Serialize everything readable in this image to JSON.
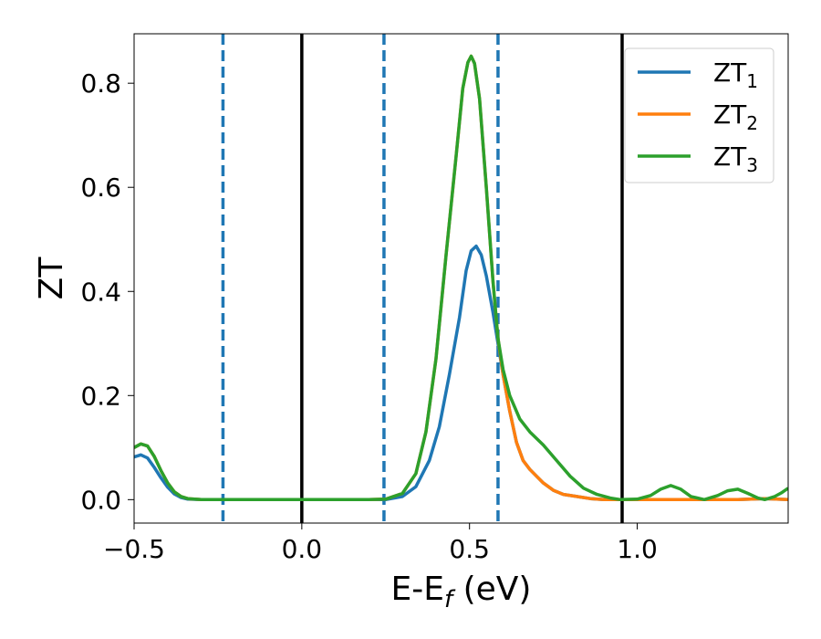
{
  "chart_data": {
    "type": "line",
    "xlabel": "E-E",
    "xlabel_sub": "f",
    "xlabel_unit": " (eV)",
    "ylabel": "ZT",
    "xlim": [
      -0.5,
      1.45
    ],
    "ylim": [
      -0.045,
      0.895
    ],
    "xticks": [
      -0.5,
      0.0,
      0.5,
      1.0
    ],
    "xtick_labels": [
      "−0.5",
      "0.0",
      "0.5",
      "1.0"
    ],
    "yticks": [
      0.0,
      0.2,
      0.4,
      0.6,
      0.8
    ],
    "ytick_labels": [
      "0.0",
      "0.2",
      "0.4",
      "0.6",
      "0.8"
    ],
    "legend_position": "top-right",
    "vlines": [
      {
        "x": -0.235,
        "style": "dashed",
        "color": "#1f77b4"
      },
      {
        "x": 0.0,
        "style": "solid",
        "color": "#000000"
      },
      {
        "x": 0.245,
        "style": "dashed",
        "color": "#1f77b4"
      },
      {
        "x": 0.585,
        "style": "dashed",
        "color": "#1f77b4"
      },
      {
        "x": 0.955,
        "style": "solid",
        "color": "#000000"
      }
    ],
    "series": [
      {
        "name": "ZT",
        "sub": "1",
        "color": "#1f77b4",
        "points": [
          [
            -0.5,
            0.082
          ],
          [
            -0.48,
            0.086
          ],
          [
            -0.46,
            0.08
          ],
          [
            -0.44,
            0.062
          ],
          [
            -0.42,
            0.042
          ],
          [
            -0.4,
            0.024
          ],
          [
            -0.38,
            0.011
          ],
          [
            -0.36,
            0.004
          ],
          [
            -0.34,
            0.001
          ],
          [
            -0.3,
            0.0
          ],
          [
            -0.2,
            0.0
          ],
          [
            -0.1,
            0.0
          ],
          [
            0.0,
            0.0
          ],
          [
            0.1,
            0.0
          ],
          [
            0.2,
            0.0
          ],
          [
            0.25,
            0.0
          ],
          [
            0.3,
            0.006
          ],
          [
            0.34,
            0.025
          ],
          [
            0.38,
            0.075
          ],
          [
            0.41,
            0.14
          ],
          [
            0.44,
            0.24
          ],
          [
            0.47,
            0.35
          ],
          [
            0.49,
            0.44
          ],
          [
            0.505,
            0.478
          ],
          [
            0.52,
            0.487
          ],
          [
            0.535,
            0.47
          ],
          [
            0.55,
            0.43
          ],
          [
            0.57,
            0.36
          ],
          [
            0.585,
            0.3
          ],
          [
            0.6,
            0.24
          ],
          [
            0.62,
            0.17
          ],
          [
            0.64,
            0.11
          ],
          [
            0.66,
            0.075
          ],
          [
            0.68,
            0.058
          ],
          [
            0.7,
            0.045
          ],
          [
            0.72,
            0.032
          ],
          [
            0.75,
            0.018
          ],
          [
            0.78,
            0.01
          ],
          [
            0.82,
            0.006
          ],
          [
            0.86,
            0.002
          ],
          [
            0.9,
            0.0
          ],
          [
            1.0,
            0.0
          ],
          [
            1.1,
            0.0
          ],
          [
            1.2,
            0.0
          ],
          [
            1.3,
            0.0
          ],
          [
            1.38,
            0.002
          ],
          [
            1.45,
            0.0
          ]
        ]
      },
      {
        "name": "ZT",
        "sub": "2",
        "color": "#ff7f0e",
        "points": [
          [
            -0.5,
            0.1
          ],
          [
            -0.48,
            0.107
          ],
          [
            -0.46,
            0.103
          ],
          [
            -0.44,
            0.083
          ],
          [
            -0.42,
            0.056
          ],
          [
            -0.4,
            0.032
          ],
          [
            -0.38,
            0.015
          ],
          [
            -0.36,
            0.006
          ],
          [
            -0.34,
            0.002
          ],
          [
            -0.3,
            0.0
          ],
          [
            -0.2,
            0.0
          ],
          [
            -0.1,
            0.0
          ],
          [
            0.0,
            0.0
          ],
          [
            0.1,
            0.0
          ],
          [
            0.2,
            0.0
          ],
          [
            0.25,
            0.001
          ],
          [
            0.3,
            0.012
          ],
          [
            0.34,
            0.05
          ],
          [
            0.37,
            0.13
          ],
          [
            0.4,
            0.27
          ],
          [
            0.43,
            0.47
          ],
          [
            0.46,
            0.66
          ],
          [
            0.48,
            0.79
          ],
          [
            0.495,
            0.84
          ],
          [
            0.505,
            0.852
          ],
          [
            0.515,
            0.838
          ],
          [
            0.53,
            0.77
          ],
          [
            0.55,
            0.6
          ],
          [
            0.57,
            0.42
          ],
          [
            0.585,
            0.31
          ],
          [
            0.6,
            0.24
          ],
          [
            0.62,
            0.17
          ],
          [
            0.64,
            0.11
          ],
          [
            0.66,
            0.075
          ],
          [
            0.68,
            0.058
          ],
          [
            0.7,
            0.045
          ],
          [
            0.72,
            0.032
          ],
          [
            0.75,
            0.018
          ],
          [
            0.78,
            0.01
          ],
          [
            0.82,
            0.006
          ],
          [
            0.86,
            0.002
          ],
          [
            0.9,
            0.0
          ],
          [
            1.0,
            0.0
          ],
          [
            1.1,
            0.0
          ],
          [
            1.2,
            0.0
          ],
          [
            1.3,
            0.0
          ],
          [
            1.38,
            0.002
          ],
          [
            1.45,
            0.0
          ]
        ]
      },
      {
        "name": "ZT",
        "sub": "3",
        "color": "#2ca02c",
        "points": [
          [
            -0.5,
            0.1
          ],
          [
            -0.48,
            0.107
          ],
          [
            -0.46,
            0.103
          ],
          [
            -0.44,
            0.083
          ],
          [
            -0.42,
            0.056
          ],
          [
            -0.4,
            0.032
          ],
          [
            -0.38,
            0.015
          ],
          [
            -0.36,
            0.006
          ],
          [
            -0.34,
            0.002
          ],
          [
            -0.3,
            0.0
          ],
          [
            -0.2,
            0.0
          ],
          [
            -0.1,
            0.0
          ],
          [
            0.0,
            0.0
          ],
          [
            0.1,
            0.0
          ],
          [
            0.2,
            0.0
          ],
          [
            0.25,
            0.001
          ],
          [
            0.3,
            0.012
          ],
          [
            0.34,
            0.05
          ],
          [
            0.37,
            0.13
          ],
          [
            0.4,
            0.27
          ],
          [
            0.43,
            0.47
          ],
          [
            0.46,
            0.66
          ],
          [
            0.48,
            0.79
          ],
          [
            0.495,
            0.84
          ],
          [
            0.505,
            0.852
          ],
          [
            0.515,
            0.838
          ],
          [
            0.53,
            0.77
          ],
          [
            0.55,
            0.6
          ],
          [
            0.57,
            0.42
          ],
          [
            0.585,
            0.31
          ],
          [
            0.6,
            0.25
          ],
          [
            0.62,
            0.2
          ],
          [
            0.65,
            0.155
          ],
          [
            0.68,
            0.13
          ],
          [
            0.72,
            0.105
          ],
          [
            0.76,
            0.075
          ],
          [
            0.8,
            0.045
          ],
          [
            0.84,
            0.022
          ],
          [
            0.88,
            0.01
          ],
          [
            0.92,
            0.003
          ],
          [
            0.95,
            0.0
          ],
          [
            1.0,
            0.001
          ],
          [
            1.04,
            0.008
          ],
          [
            1.07,
            0.02
          ],
          [
            1.1,
            0.027
          ],
          [
            1.13,
            0.02
          ],
          [
            1.16,
            0.006
          ],
          [
            1.2,
            0.0
          ],
          [
            1.24,
            0.008
          ],
          [
            1.27,
            0.017
          ],
          [
            1.3,
            0.02
          ],
          [
            1.33,
            0.012
          ],
          [
            1.36,
            0.003
          ],
          [
            1.38,
            0.0
          ],
          [
            1.41,
            0.006
          ],
          [
            1.43,
            0.013
          ],
          [
            1.45,
            0.022
          ]
        ]
      }
    ]
  }
}
